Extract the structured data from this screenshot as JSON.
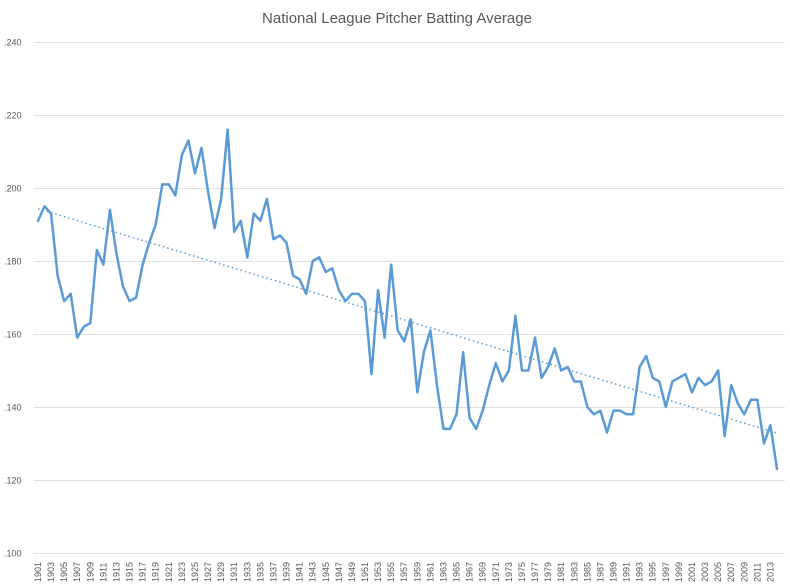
{
  "chart_data": {
    "type": "line",
    "title": "National League Pitcher Batting Average",
    "xlabel": "",
    "ylabel": "",
    "ylim": [
      0.1,
      0.24
    ],
    "yticks": [
      ".100",
      ".120",
      ".140",
      ".160",
      ".180",
      ".200",
      ".220",
      ".240"
    ],
    "ytick_values": [
      0.1,
      0.12,
      0.14,
      0.16,
      0.18,
      0.2,
      0.22,
      0.24
    ],
    "xtick_step": 2,
    "grid": true,
    "colors": {
      "series": "#5b9bd5",
      "grid": "#e0e0e0",
      "text": "#595959"
    },
    "series": [
      {
        "name": "Pitcher Batting Average",
        "x_start": 1901,
        "values": [
          0.191,
          0.195,
          0.193,
          0.176,
          0.169,
          0.171,
          0.159,
          0.162,
          0.163,
          0.183,
          0.179,
          0.194,
          0.182,
          0.173,
          0.169,
          0.17,
          0.179,
          0.185,
          0.19,
          0.201,
          0.201,
          0.198,
          0.209,
          0.213,
          0.204,
          0.211,
          0.199,
          0.189,
          0.197,
          0.216,
          0.188,
          0.191,
          0.181,
          0.193,
          0.191,
          0.197,
          0.186,
          0.187,
          0.185,
          0.176,
          0.175,
          0.171,
          0.18,
          0.181,
          0.177,
          0.178,
          0.172,
          0.169,
          0.171,
          0.171,
          0.169,
          0.149,
          0.172,
          0.159,
          0.179,
          0.161,
          0.158,
          0.164,
          0.144,
          0.155,
          0.161,
          0.146,
          0.134,
          0.134,
          0.138,
          0.155,
          0.137,
          0.134,
          0.139,
          0.146,
          0.152,
          0.147,
          0.15,
          0.165,
          0.15,
          0.15,
          0.159,
          0.148,
          0.151,
          0.156,
          0.15,
          0.151,
          0.147,
          0.147,
          0.14,
          0.138,
          0.139,
          0.133,
          0.139,
          0.139,
          0.138,
          0.138,
          0.151,
          0.154,
          0.148,
          0.147,
          0.14,
          0.147,
          0.148,
          0.149,
          0.144,
          0.148,
          0.146,
          0.147,
          0.15,
          0.132,
          0.146,
          0.141,
          0.138,
          0.142,
          0.142,
          0.13,
          0.135,
          0.123
        ]
      }
    ],
    "trendline": {
      "type": "linear",
      "style": "dotted"
    }
  }
}
